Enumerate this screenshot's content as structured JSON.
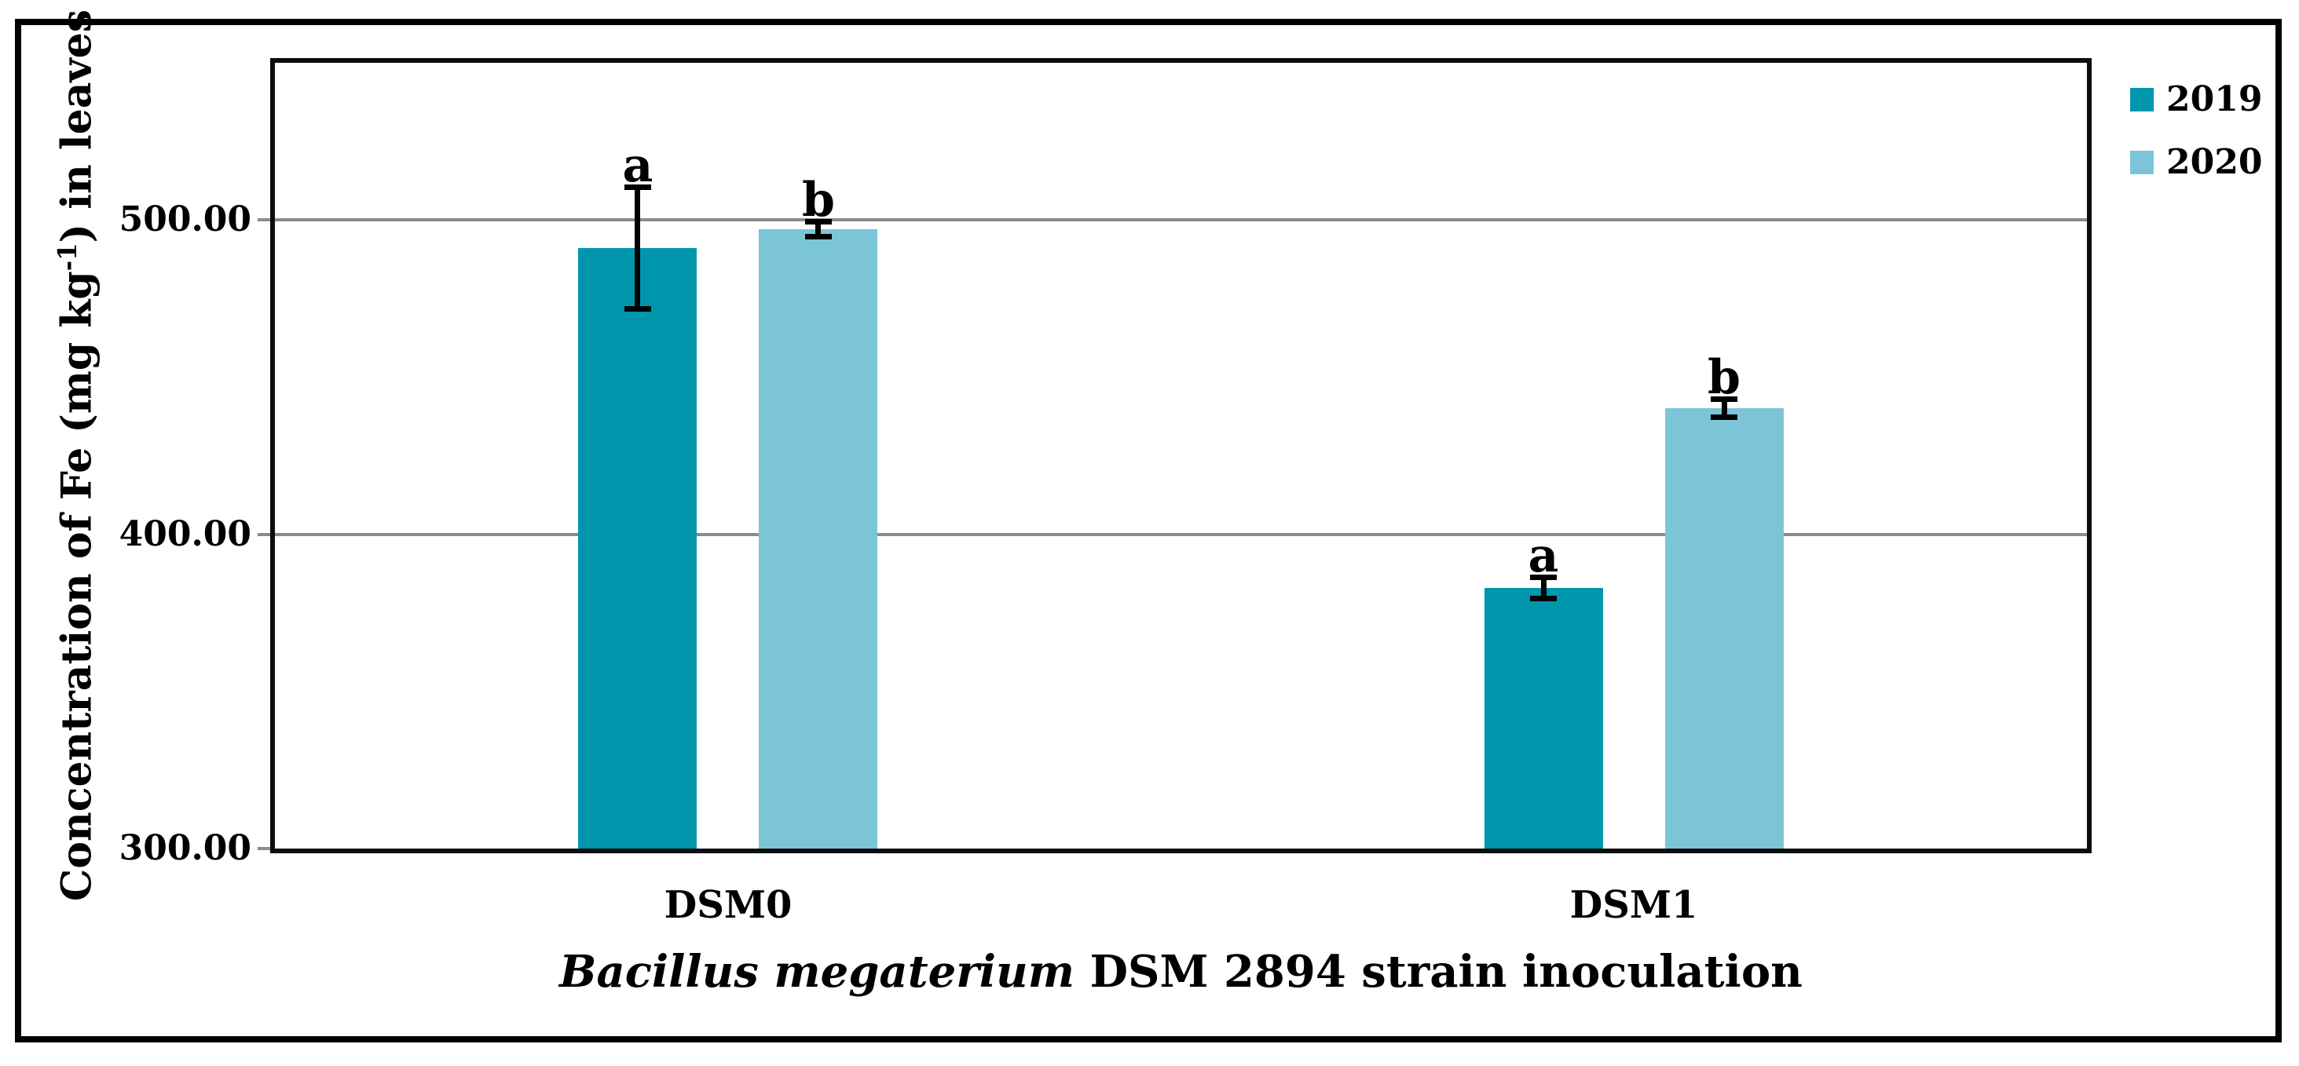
{
  "figure": {
    "background": "#ffffff",
    "frame_color": "#000000"
  },
  "chart_data": {
    "type": "bar",
    "title": "",
    "categories": [
      "DSM0",
      "DSM1"
    ],
    "series": [
      {
        "name": "2019",
        "color": "#0097ad",
        "values": [
          491,
          383
        ],
        "errors": [
          19.5,
          3.5
        ],
        "sig_letters": [
          "a",
          "a"
        ]
      },
      {
        "name": "2020",
        "color": "#7cc5d9",
        "values": [
          497,
          440
        ],
        "errors": [
          2.5,
          3.0
        ],
        "sig_letters": [
          "b",
          "b"
        ]
      }
    ],
    "xlabel_italic": "Bacillus megaterium",
    "xlabel_rest": " DSM 2894 strain inoculation",
    "ylabel_parts": {
      "prefix": "Concentration of Fe (mg kg",
      "sup": "-1",
      "suffix": ") in leaves"
    },
    "ylim": [
      300,
      550
    ],
    "yticks": [
      {
        "value": 300,
        "label": "300.00"
      },
      {
        "value": 400,
        "label": "400.00"
      },
      {
        "value": 500,
        "label": "500.00"
      }
    ],
    "gridline_values": [
      400,
      500
    ],
    "grid": true,
    "gridline_color": "#8b8b8b",
    "error_bar_color": "#000000",
    "legend_position": "top-right",
    "legend": [
      "2019",
      "2020"
    ]
  }
}
